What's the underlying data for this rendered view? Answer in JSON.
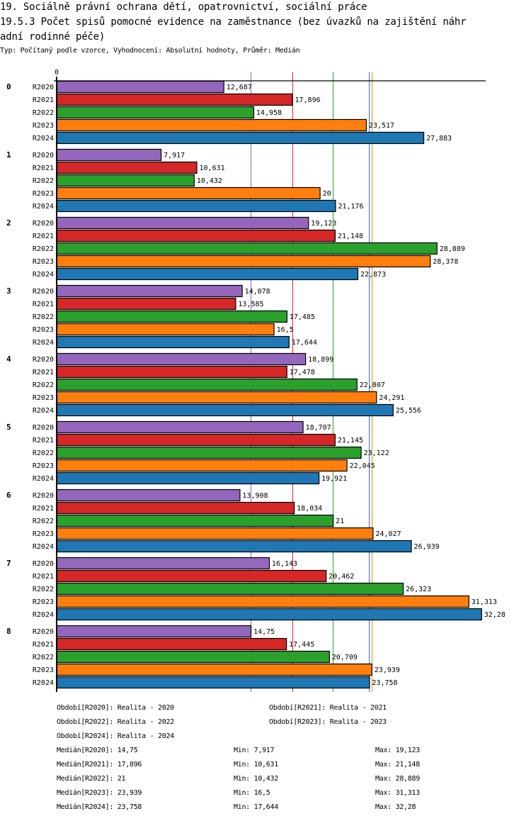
{
  "header": {
    "title_line1": "19. Sociálně právní ochrana dětí, opatrovnictví, sociální práce",
    "title_line2": "19.5.3 Počet spisů pomocné evidence na zaměstnance  (bez úvazků na zajištění náhr",
    "title_line3": "adní rodinné péče)",
    "subtitle": "Typ: Počítaný podle vzorce, Vyhodnocení: Absolutní hodnoty, Průměr: Medián"
  },
  "chart_data": {
    "type": "bar",
    "orientation": "horizontal",
    "title": "19.5.3 Počet spisů pomocné evidence na zaměstnance (bez úvazků na zajištění náhradní rodinné péče)",
    "xlabel": "",
    "ylabel": "",
    "x_tick_labels": [
      "0"
    ],
    "xlim": [
      0,
      32.6
    ],
    "grid": false,
    "categories": [
      "0",
      "1",
      "2",
      "3",
      "4",
      "5",
      "6",
      "7",
      "8"
    ],
    "series": [
      {
        "name": "R2020",
        "color": "#9467bd",
        "values": [
          12.687,
          7.917,
          19.123,
          14.078,
          18.899,
          18.707,
          13.908,
          16.143,
          14.75
        ],
        "labels": [
          "12,687",
          "7,917",
          "19,123",
          "14,078",
          "18,899",
          "18,707",
          "13,908",
          "16,143",
          "14,75"
        ]
      },
      {
        "name": "R2021",
        "color": "#d62728",
        "values": [
          17.896,
          10.631,
          21.148,
          13.585,
          17.478,
          21.145,
          18.034,
          20.462,
          17.445
        ],
        "labels": [
          "17,896",
          "10,631",
          "21,148",
          "13,585",
          "17,478",
          "21,145",
          "18,034",
          "20,462",
          "17,445"
        ]
      },
      {
        "name": "R2022",
        "color": "#2ca02c",
        "values": [
          14.958,
          10.432,
          28.889,
          17.485,
          22.807,
          23.122,
          21,
          26.323,
          20.709
        ],
        "labels": [
          "14,958",
          "10,432",
          "28,889",
          "17,485",
          "22,807",
          "23,122",
          "21",
          "26,323",
          "20,709"
        ]
      },
      {
        "name": "R2023",
        "color": "#ff7f0e",
        "values": [
          23.517,
          20,
          28.378,
          16.5,
          24.291,
          22.045,
          24.027,
          31.313,
          23.939
        ],
        "labels": [
          "23,517",
          "20",
          "28,378",
          "16,5",
          "24,291",
          "22,045",
          "24,027",
          "31,313",
          "23,939"
        ]
      },
      {
        "name": "R2024",
        "color": "#1f77b4",
        "values": [
          27.883,
          21.176,
          22.873,
          17.644,
          25.556,
          19.921,
          26.939,
          32.28,
          23.758
        ],
        "labels": [
          "27,883",
          "21,176",
          "22,873",
          "17,644",
          "25,556",
          "19,921",
          "26,939",
          "32,28",
          "23,758"
        ]
      }
    ],
    "median_lines": [
      {
        "series": "R2020",
        "value": 14.75,
        "color": "#9467bd"
      },
      {
        "series": "R2021",
        "value": 17.896,
        "color": "#d62728"
      },
      {
        "series": "R2022",
        "value": 21,
        "color": "#2ca02c"
      },
      {
        "series": "R2023",
        "value": 23.939,
        "color": "#ff7f0e"
      },
      {
        "series": "R2024",
        "value": 23.758,
        "color": "#1f77b4"
      }
    ],
    "legend": [
      "Období[R2020]: Realita - 2020",
      "Období[R2021]: Realita - 2021",
      "Období[R2022]: Realita - 2022",
      "Období[R2023]: Realita - 2023",
      "Období[R2024]: Realita - 2024"
    ],
    "legend_position": "bottom",
    "stats": [
      {
        "median": "Medián[R2020]: 14,75",
        "min": "Min: 7,917",
        "max": "Max: 19,123"
      },
      {
        "median": "Medián[R2021]: 17,896",
        "min": "Min: 10,631",
        "max": "Max: 21,148"
      },
      {
        "median": "Medián[R2022]: 21",
        "min": "Min: 10,432",
        "max": "Max: 28,889"
      },
      {
        "median": "Medián[R2023]: 23,939",
        "min": "Min: 16,5",
        "max": "Max: 31,313"
      },
      {
        "median": "Medián[R2024]: 23,758",
        "min": "Min: 17,644",
        "max": "Max: 32,28"
      }
    ]
  }
}
